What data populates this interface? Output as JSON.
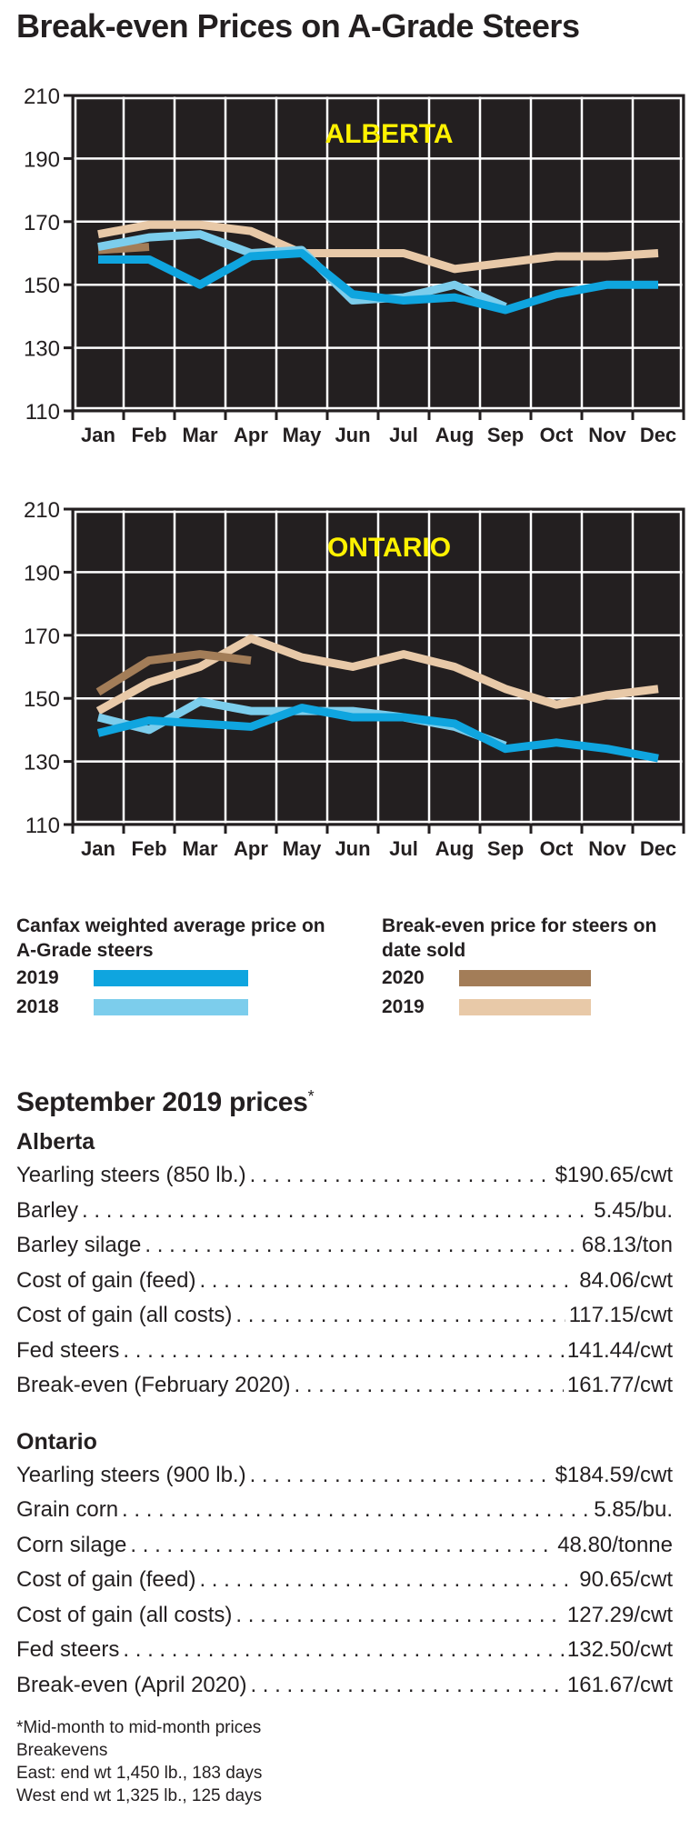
{
  "title": "Break-even Prices on A-Grade Steers",
  "colors": {
    "canfax_2019": "#0fa5df",
    "canfax_2018": "#7ccdec",
    "breakeven_2020": "#a37d58",
    "breakeven_2019": "#e8c9a8",
    "plot_bg": "#231f20",
    "grid": "#ffffff",
    "region_label": "#fff200"
  },
  "chart_data": [
    {
      "type": "line",
      "title": "ALBERTA",
      "x": [
        "Jan",
        "Feb",
        "Mar",
        "Apr",
        "May",
        "Jun",
        "Jul",
        "Aug",
        "Sep",
        "Oct",
        "Nov",
        "Dec"
      ],
      "ylim": [
        110,
        210
      ],
      "yticks": [
        210,
        190,
        170,
        150,
        130,
        110
      ],
      "grid": true,
      "series": [
        {
          "key": "breakeven_2019",
          "values": [
            166,
            169,
            169,
            167,
            160,
            160,
            160,
            155,
            157,
            159,
            159,
            160
          ]
        },
        {
          "key": "breakeven_2020",
          "values": [
            161,
            162,
            null,
            null,
            null,
            null,
            null,
            null,
            null,
            null,
            null,
            null
          ]
        },
        {
          "key": "canfax_2018",
          "values": [
            162,
            165,
            166,
            160,
            161,
            145,
            146,
            150,
            143,
            null,
            null,
            null
          ]
        },
        {
          "key": "canfax_2019",
          "values": [
            158,
            158,
            150,
            159,
            160,
            147,
            145,
            146,
            142,
            147,
            150,
            150
          ]
        }
      ]
    },
    {
      "type": "line",
      "title": "ONTARIO",
      "x": [
        "Jan",
        "Feb",
        "Mar",
        "Apr",
        "May",
        "Jun",
        "Jul",
        "Aug",
        "Sep",
        "Oct",
        "Nov",
        "Dec"
      ],
      "ylim": [
        110,
        210
      ],
      "yticks": [
        210,
        190,
        170,
        150,
        130,
        110
      ],
      "grid": true,
      "series": [
        {
          "key": "breakeven_2019",
          "values": [
            146,
            155,
            160,
            169,
            163,
            160,
            164,
            160,
            153,
            148,
            151,
            153
          ]
        },
        {
          "key": "breakeven_2020",
          "values": [
            152,
            162,
            164,
            162,
            null,
            null,
            null,
            null,
            null,
            null,
            null,
            null
          ]
        },
        {
          "key": "canfax_2018",
          "values": [
            144,
            140,
            149,
            146,
            146,
            146,
            144,
            141,
            135,
            null,
            null,
            null
          ]
        },
        {
          "key": "canfax_2019",
          "values": [
            139,
            143,
            142,
            141,
            147,
            144,
            144,
            142,
            134,
            136,
            134,
            131
          ]
        }
      ]
    }
  ],
  "legend": {
    "left_heading": "Canfax weighted average price on A-Grade steers",
    "left_items": [
      {
        "year": "2019",
        "key": "canfax_2019"
      },
      {
        "year": "2018",
        "key": "canfax_2018"
      }
    ],
    "right_heading": "Break-even price for steers on date sold",
    "right_items": [
      {
        "year": "2020",
        "key": "breakeven_2020"
      },
      {
        "year": "2019",
        "key": "breakeven_2019"
      }
    ]
  },
  "prices": {
    "title": "September 2019 prices",
    "asterisk": "*",
    "regions": [
      {
        "name": "Alberta",
        "rows": [
          {
            "label": "Yearling steers (850 lb.)",
            "value": "$190.65/cwt"
          },
          {
            "label": "Barley",
            "value": "5.45/bu."
          },
          {
            "label": "Barley silage",
            "value": "68.13/ton"
          },
          {
            "label": "Cost of gain (feed)",
            "value": "84.06/cwt"
          },
          {
            "label": "Cost of gain (all costs)",
            "value": "117.15/cwt"
          },
          {
            "label": "Fed steers",
            "value": "141.44/cwt"
          },
          {
            "label": "Break-even (February 2020)",
            "value": "161.77/cwt"
          }
        ]
      },
      {
        "name": "Ontario",
        "rows": [
          {
            "label": "Yearling steers (900 lb.)",
            "value": "$184.59/cwt"
          },
          {
            "label": "Grain corn",
            "value": "5.85/bu."
          },
          {
            "label": "Corn silage",
            "value": "48.80/tonne"
          },
          {
            "label": "Cost of gain (feed)",
            "value": "90.65/cwt"
          },
          {
            "label": "Cost of gain (all costs)",
            "value": "127.29/cwt"
          },
          {
            "label": "Fed steers",
            "value": "132.50/cwt"
          },
          {
            "label": "Break-even (April 2020)",
            "value": "161.67/cwt"
          }
        ]
      }
    ]
  },
  "footnotes": [
    "*Mid-month to mid-month prices",
    "Breakevens",
    "East: end wt 1,450 lb., 183 days",
    "West end wt 1,325 lb., 125 days"
  ]
}
